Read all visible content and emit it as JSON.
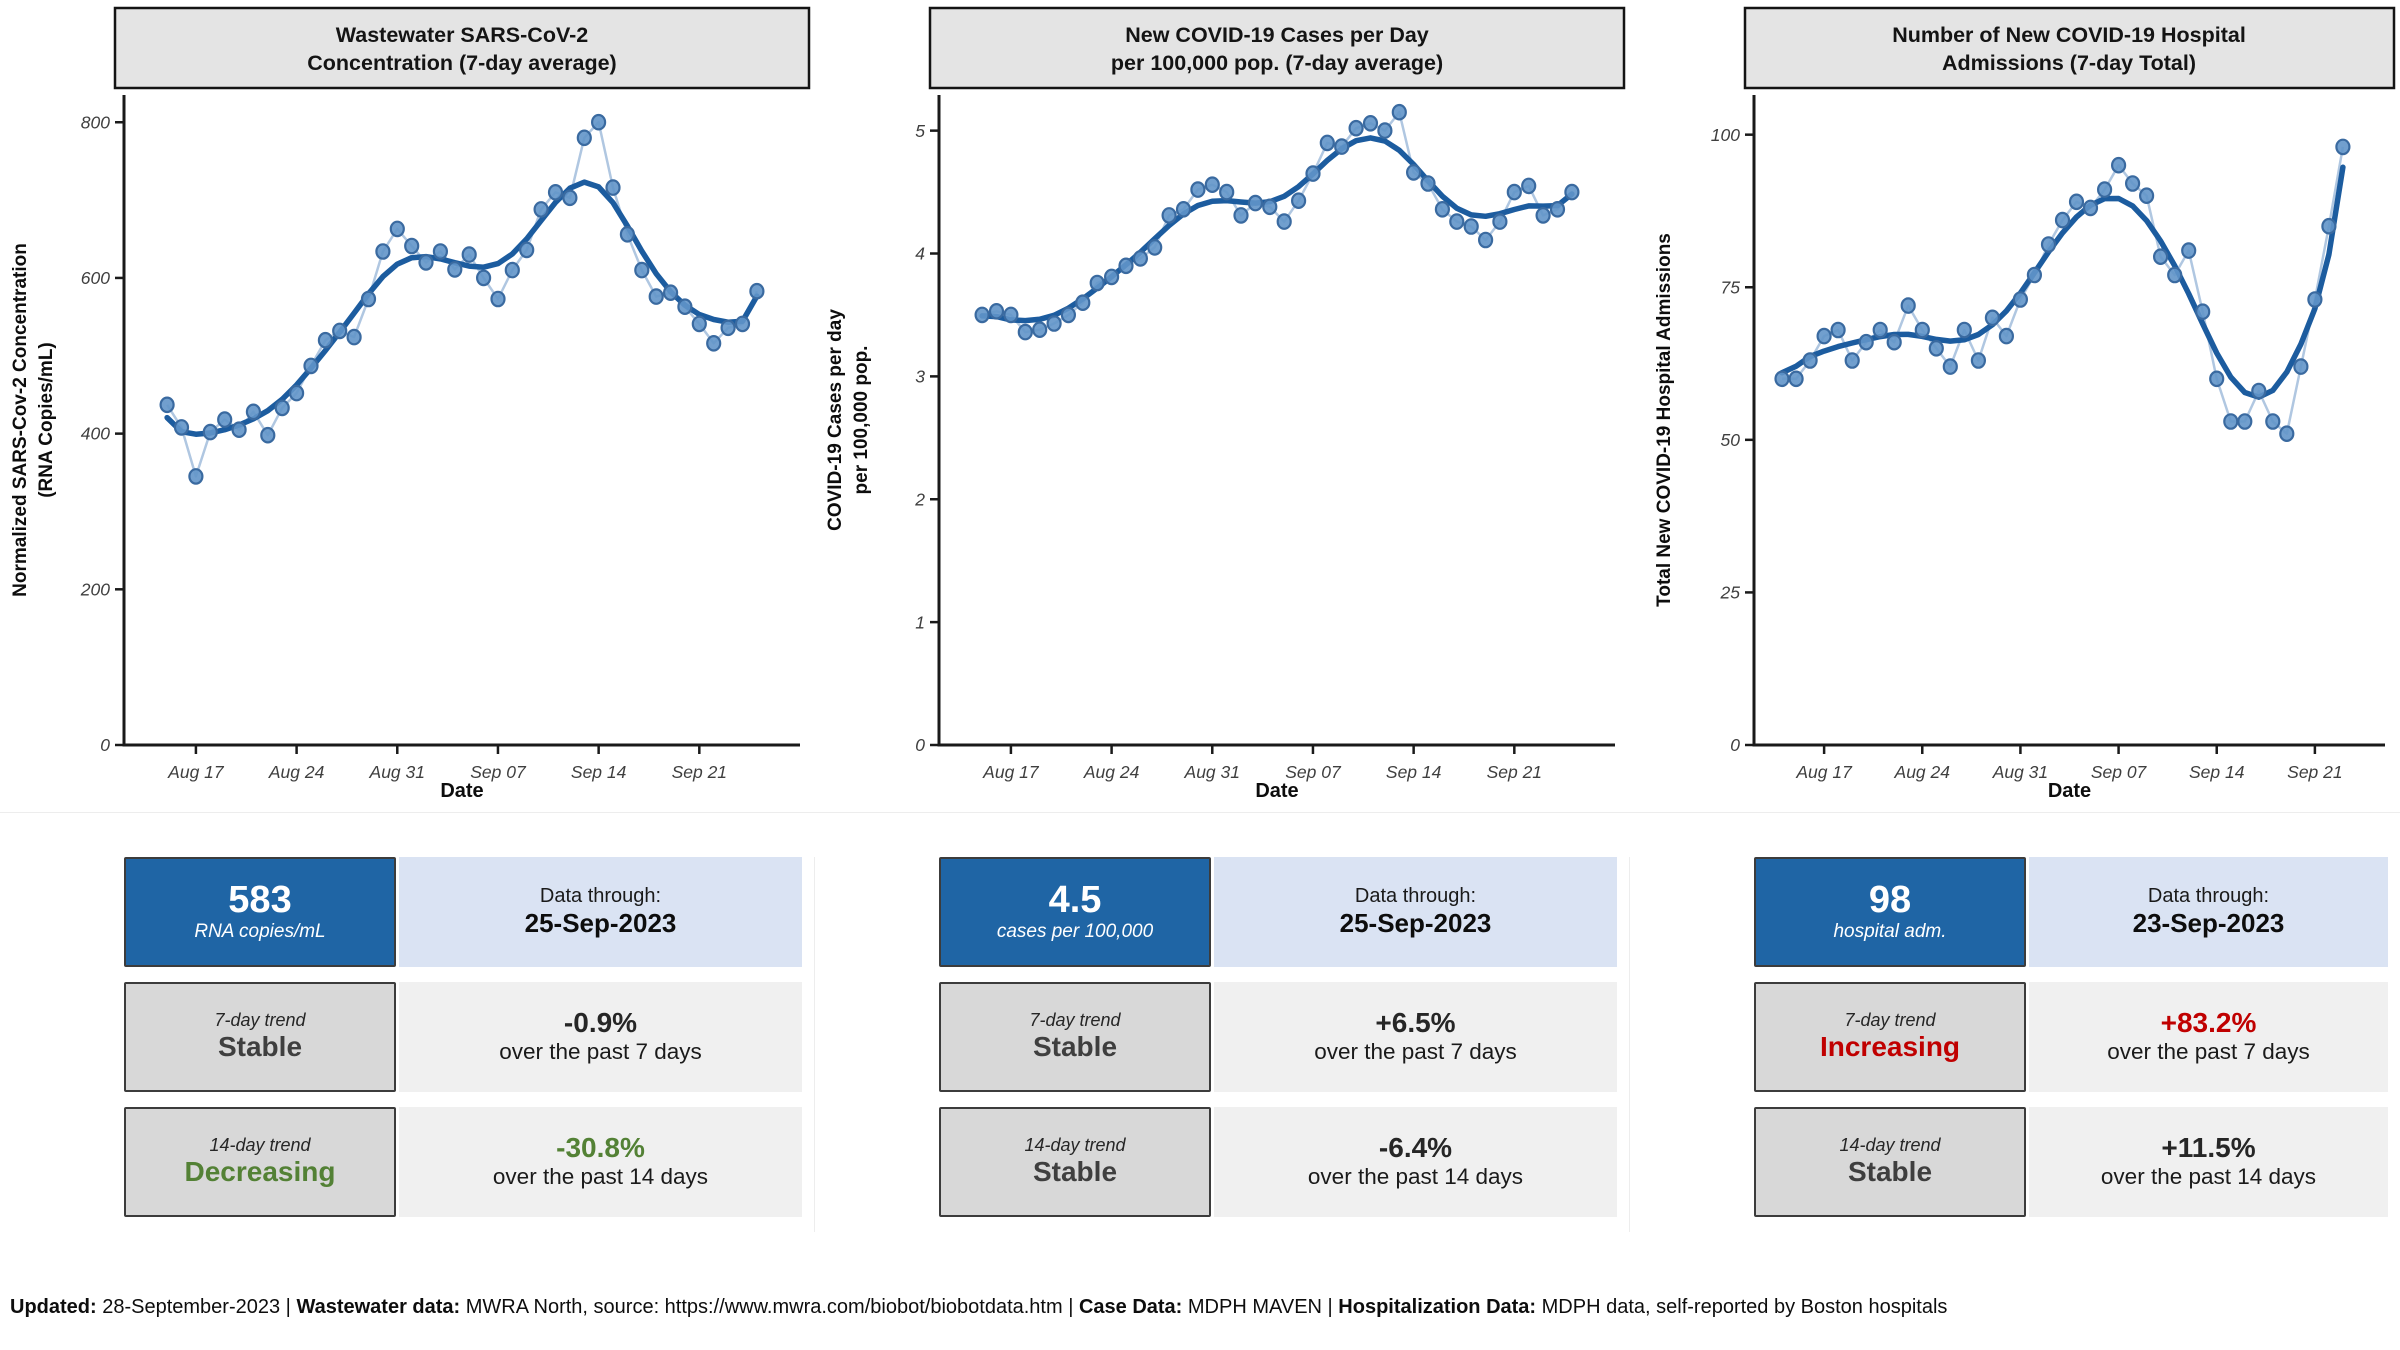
{
  "colors": {
    "accent_blue": "#1f65a5",
    "light_blue_band": "#dae3f3",
    "gray_box": "#d8d8d8",
    "light_gray_band": "#f0f0f0",
    "title_strip": "#e4e4e4",
    "point_fill": "#6295c9",
    "point_stroke": "#3a6aa0",
    "connector_line": "#b0c7e1",
    "smooth_line": "#1c5c9f",
    "axis_line": "#1a1a1a",
    "tick_text": "#3f3f3f",
    "status_green": "#538135",
    "status_red": "#c00000",
    "status_neutral": "#3f3f3f"
  },
  "chart_data": [
    {
      "type": "line",
      "title_lines": [
        "Wastewater SARS-CoV-2",
        "Concentration (7-day average)"
      ],
      "title": "Wastewater SARS-CoV-2 Concentration (7-day average)",
      "xlabel": "Date",
      "ylabel_lines": [
        "Normalized SARS-Cov-2 Concentration",
        "(RNA Copies/mL)"
      ],
      "ylabel": "Normalized SARS-Cov-2 Concentration (RNA Copies/mL)",
      "ylim": [
        0,
        835
      ],
      "yticks": [
        0,
        200,
        400,
        600,
        800
      ],
      "xticks": {
        "labels": [
          "Aug 17",
          "Aug 24",
          "Aug 31",
          "Sep 07",
          "Sep 14",
          "Sep 21"
        ],
        "day_offsets": [
          5,
          12,
          19,
          26,
          33,
          40
        ]
      },
      "domain_days": 47,
      "first_point_day": 3,
      "x_start_date": "2023-08-15",
      "x_end_date": "2023-09-25",
      "cadence": "daily",
      "smoothed_trend": true,
      "grid": false,
      "legend": "none",
      "values": [
        437,
        408,
        345,
        402,
        418,
        405,
        428,
        398,
        433,
        452,
        487,
        520,
        532,
        524,
        573,
        634,
        663,
        641,
        620,
        634,
        611,
        630,
        600,
        573,
        610,
        636,
        688,
        710,
        703,
        780,
        800,
        716,
        656,
        610,
        576,
        581,
        563,
        541,
        516,
        536,
        541,
        583
      ]
    },
    {
      "type": "line",
      "title_lines": [
        "New COVID-19 Cases per Day",
        "per 100,000 pop. (7-day average)"
      ],
      "title": "New COVID-19 Cases per Day per 100,000 pop. (7-day average)",
      "xlabel": "Date",
      "ylabel_lines": [
        "COVID-19 Cases per day",
        "per 100,000 pop."
      ],
      "ylabel": "COVID-19 Cases per day per 100,000 pop.",
      "ylim": [
        0,
        5.29
      ],
      "yticks": [
        0,
        1,
        2,
        3,
        4,
        5
      ],
      "xticks": {
        "labels": [
          "Aug 17",
          "Aug 24",
          "Aug 31",
          "Sep 07",
          "Sep 14",
          "Sep 21"
        ],
        "day_offsets": [
          5,
          12,
          19,
          26,
          33,
          40
        ]
      },
      "domain_days": 47,
      "first_point_day": 3,
      "x_start_date": "2023-08-15",
      "x_end_date": "2023-09-25",
      "cadence": "daily",
      "smoothed_trend": true,
      "grid": false,
      "legend": "none",
      "values": [
        3.5,
        3.53,
        3.5,
        3.36,
        3.38,
        3.43,
        3.5,
        3.6,
        3.76,
        3.81,
        3.9,
        3.96,
        4.05,
        4.31,
        4.36,
        4.52,
        4.56,
        4.5,
        4.31,
        4.41,
        4.38,
        4.26,
        4.43,
        4.65,
        4.9,
        4.87,
        5.02,
        5.06,
        5.0,
        5.15,
        4.66,
        4.57,
        4.36,
        4.26,
        4.22,
        4.11,
        4.26,
        4.5,
        4.55,
        4.31,
        4.36,
        4.5
      ]
    },
    {
      "type": "line",
      "title_lines": [
        "Number of New COVID-19 Hospital",
        "Admissions (7-day Total)"
      ],
      "title": "Number of New COVID-19 Hospital Admissions (7-day Total)",
      "xlabel": "Date",
      "ylabel_lines": [
        "Total New COVID-19 Hospital Admissions"
      ],
      "ylabel": "Total New COVID-19 Hospital Admissions",
      "ylim": [
        0,
        106.5
      ],
      "yticks": [
        0,
        25,
        50,
        75,
        100
      ],
      "xticks": {
        "labels": [
          "Aug 17",
          "Aug 24",
          "Aug 31",
          "Sep 07",
          "Sep 14",
          "Sep 21"
        ],
        "day_offsets": [
          5,
          12,
          19,
          26,
          33,
          40
        ]
      },
      "domain_days": 45,
      "first_point_day": 2,
      "x_start_date": "2023-08-14",
      "x_end_date": "2023-09-23",
      "cadence": "daily",
      "smoothed_trend": true,
      "grid": false,
      "legend": "none",
      "values": [
        60,
        60,
        63,
        67,
        68,
        63,
        66,
        68,
        66,
        72,
        68,
        65,
        62,
        68,
        63,
        70,
        67,
        73,
        77,
        82,
        86,
        89,
        88,
        91,
        95,
        92,
        90,
        80,
        77,
        81,
        71,
        60,
        53,
        53,
        58,
        53,
        51,
        62,
        73,
        85,
        98
      ]
    }
  ],
  "cards": [
    {
      "value": "583",
      "unit": "RNA copies/mL",
      "through_label": "Data through:",
      "through_date": "25-Sep-2023",
      "trends": [
        {
          "label": "7-day trend",
          "status": "Stable",
          "status_color": "#3f3f3f",
          "pct": "-0.9%",
          "pct_color": "#262626",
          "desc": "over the past 7 days"
        },
        {
          "label": "14-day trend",
          "status": "Decreasing",
          "status_color": "#538135",
          "pct": "-30.8%",
          "pct_color": "#538135",
          "desc": "over the past 14 days"
        }
      ]
    },
    {
      "value": "4.5",
      "unit": "cases per 100,000",
      "through_label": "Data through:",
      "through_date": "25-Sep-2023",
      "trends": [
        {
          "label": "7-day trend",
          "status": "Stable",
          "status_color": "#3f3f3f",
          "pct": "+6.5%",
          "pct_color": "#262626",
          "desc": "over the past 7 days"
        },
        {
          "label": "14-day trend",
          "status": "Stable",
          "status_color": "#3f3f3f",
          "pct": "-6.4%",
          "pct_color": "#262626",
          "desc": "over the past 14 days"
        }
      ]
    },
    {
      "value": "98",
      "unit": "hospital adm.",
      "through_label": "Data through:",
      "through_date": "23-Sep-2023",
      "trends": [
        {
          "label": "7-day trend",
          "status": "Increasing",
          "status_color": "#c00000",
          "pct": "+83.2%",
          "pct_color": "#c00000",
          "desc": "over the past 7 days"
        },
        {
          "label": "14-day trend",
          "status": "Stable",
          "status_color": "#3f3f3f",
          "pct": "+11.5%",
          "pct_color": "#262626",
          "desc": "over the past 14 days"
        }
      ]
    }
  ],
  "footer": {
    "segments": [
      {
        "text": "Updated:",
        "bold": true
      },
      {
        "text": " 28-September-2023 | ",
        "bold": false
      },
      {
        "text": "Wastewater data:",
        "bold": true
      },
      {
        "text": " MWRA North, source: https://www.mwra.com/biobot/biobotdata.htm | ",
        "bold": false
      },
      {
        "text": "Case Data:",
        "bold": true
      },
      {
        "text": " MDPH MAVEN | ",
        "bold": false
      },
      {
        "text": "Hospitalization Data:",
        "bold": true
      },
      {
        "text": " MDPH data, self-reported by Boston hospitals",
        "bold": false
      }
    ]
  }
}
